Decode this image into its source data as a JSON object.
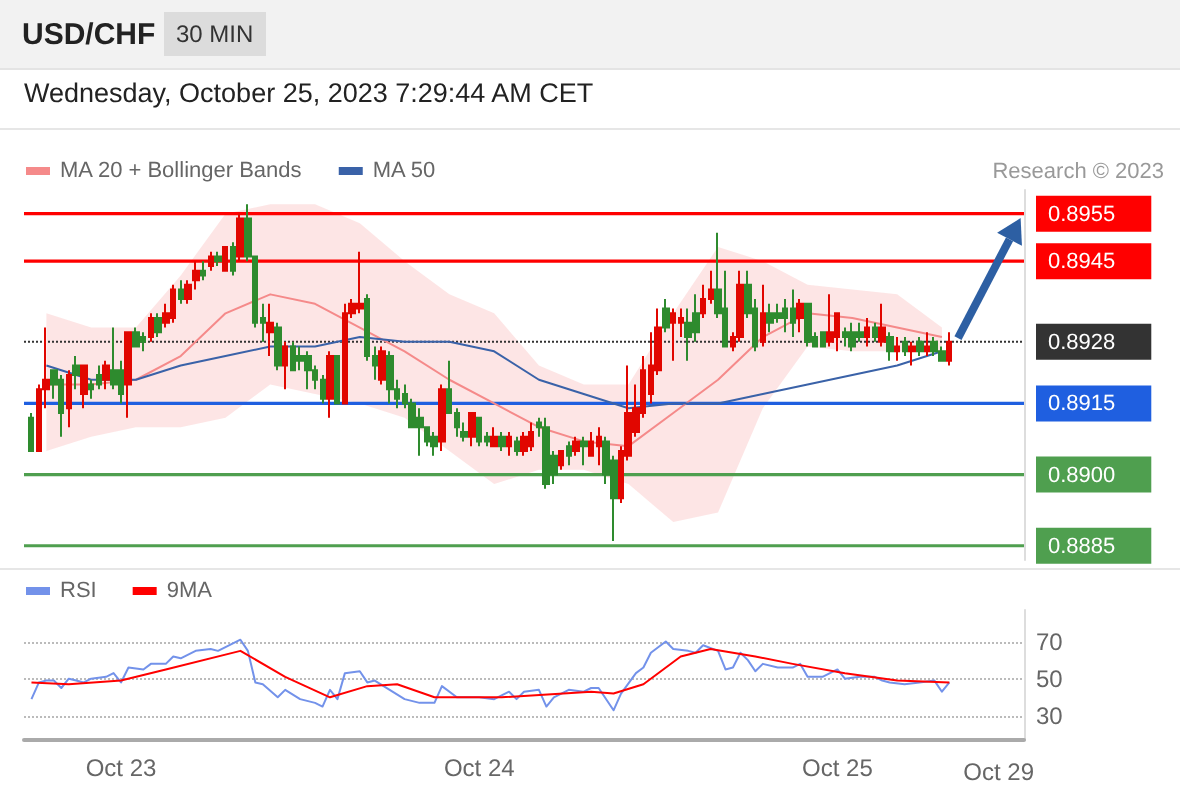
{
  "chart_data": [
    {
      "type": "candlestick",
      "title": "USD/CHF",
      "subtitle": "Wednesday, October 25, 2023 7:29:44 AM CET",
      "annotations": [
        "30 MIN",
        "Research © 2023"
      ],
      "xlim": [
        "2023-10-22T17:30",
        "2023-10-25T12:30"
      ],
      "ylim": [
        0.8882,
        0.896
      ],
      "yticks": [
        0.8885,
        {
          "value": 0.89,
          "label": "0.8900"
        },
        0.8915,
        0.8928,
        0.8945,
        0.8955
      ],
      "legend": "top left",
      "x": [
        "2023-10-22T18:00",
        "2023-10-22T18:30",
        "2023-10-22T19:00",
        "2023-10-22T19:30",
        "2023-10-22T20:00",
        "2023-10-22T20:30",
        "2023-10-22T21:00",
        "2023-10-22T21:30",
        "2023-10-22T22:00",
        "2023-10-22T22:30",
        "2023-10-22T23:00",
        "2023-10-22T23:30",
        "2023-10-23T00:00",
        "2023-10-23T00:30",
        "2023-10-23T01:00",
        "2023-10-23T01:30",
        "2023-10-23T02:00",
        "2023-10-23T02:30",
        "2023-10-23T03:00",
        "2023-10-23T03:30",
        "2023-10-23T04:00",
        "2023-10-23T04:30",
        "2023-10-23T05:00",
        "2023-10-23T05:30",
        "2023-10-23T06:00",
        "2023-10-23T06:30",
        "2023-10-23T07:00",
        "2023-10-23T07:30",
        "2023-10-23T08:00",
        "2023-10-23T08:30",
        "2023-10-23T09:00",
        "2023-10-23T09:30",
        "2023-10-23T10:00",
        "2023-10-23T10:30",
        "2023-10-23T11:00",
        "2023-10-23T11:30",
        "2023-10-23T12:00",
        "2023-10-23T12:30",
        "2023-10-23T13:00",
        "2023-10-23T13:30",
        "2023-10-23T14:00",
        "2023-10-23T14:30",
        "2023-10-23T15:00",
        "2023-10-23T15:30",
        "2023-10-23T16:00",
        "2023-10-23T16:30",
        "2023-10-23T17:00",
        "2023-10-23T17:30",
        "2023-10-23T18:00",
        "2023-10-23T18:30",
        "2023-10-23T19:00",
        "2023-10-23T19:30",
        "2023-10-23T20:00",
        "2023-10-23T20:30",
        "2023-10-23T21:00",
        "2023-10-23T21:30",
        "2023-10-23T22:00",
        "2023-10-23T22:30",
        "2023-10-23T23:00",
        "2023-10-23T23:30",
        "2023-10-24T00:00",
        "2023-10-24T00:30",
        "2023-10-24T01:00",
        "2023-10-24T01:30",
        "2023-10-24T02:00",
        "2023-10-24T02:30",
        "2023-10-24T03:00",
        "2023-10-24T03:30",
        "2023-10-24T04:00",
        "2023-10-24T04:30",
        "2023-10-24T05:00",
        "2023-10-24T05:30",
        "2023-10-24T06:00",
        "2023-10-24T06:30",
        "2023-10-24T07:00",
        "2023-10-24T07:30",
        "2023-10-24T08:00",
        "2023-10-24T08:30",
        "2023-10-24T09:00",
        "2023-10-24T09:30",
        "2023-10-24T10:00",
        "2023-10-24T10:30",
        "2023-10-24T11:00",
        "2023-10-24T11:30",
        "2023-10-24T12:00",
        "2023-10-24T12:30",
        "2023-10-24T13:00",
        "2023-10-24T13:30",
        "2023-10-24T14:00",
        "2023-10-24T14:30",
        "2023-10-24T15:00",
        "2023-10-24T15:30",
        "2023-10-24T16:00",
        "2023-10-24T16:30",
        "2023-10-24T17:00",
        "2023-10-24T17:30",
        "2023-10-24T18:00",
        "2023-10-24T18:30",
        "2023-10-24T19:00",
        "2023-10-24T19:30",
        "2023-10-24T20:00",
        "2023-10-24T20:30",
        "2023-10-24T21:00",
        "2023-10-24T21:30",
        "2023-10-24T22:00",
        "2023-10-24T22:30",
        "2023-10-24T23:00",
        "2023-10-24T23:30",
        "2023-10-25T00:00",
        "2023-10-25T00:30",
        "2023-10-25T01:00",
        "2023-10-25T01:30",
        "2023-10-25T02:00",
        "2023-10-25T02:30",
        "2023-10-25T03:00",
        "2023-10-25T03:30",
        "2023-10-25T04:00",
        "2023-10-25T04:30",
        "2023-10-25T05:00",
        "2023-10-25T05:30",
        "2023-10-25T06:00",
        "2023-10-25T06:30",
        "2023-10-25T07:00",
        "2023-10-25T07:30"
      ],
      "ohlc": [
        [
          0.8912,
          0.8913,
          0.8905,
          0.8905
        ],
        [
          0.8905,
          0.8919,
          0.8905,
          0.8918
        ],
        [
          0.8918,
          0.8931,
          0.8914,
          0.892
        ],
        [
          0.8922,
          0.8922,
          0.8916,
          0.8919
        ],
        [
          0.892,
          0.8921,
          0.8908,
          0.8913
        ],
        [
          0.8914,
          0.8922,
          0.891,
          0.8921
        ],
        [
          0.8923,
          0.8925,
          0.8918,
          0.8921
        ],
        [
          0.8917,
          0.8923,
          0.8914,
          0.8923
        ],
        [
          0.8919,
          0.892,
          0.8916,
          0.8918
        ],
        [
          0.8921,
          0.8923,
          0.8918,
          0.8919
        ],
        [
          0.892,
          0.8924,
          0.8918,
          0.8923
        ],
        [
          0.8922,
          0.8931,
          0.8918,
          0.8919
        ],
        [
          0.8922,
          0.8924,
          0.8915,
          0.8917
        ],
        [
          0.8919,
          0.893,
          0.8912,
          0.893
        ],
        [
          0.893,
          0.8931,
          0.8927,
          0.8927
        ],
        [
          0.8929,
          0.893,
          0.8926,
          0.8928
        ],
        [
          0.8929,
          0.8934,
          0.8928,
          0.8933
        ],
        [
          0.8933,
          0.8934,
          0.8929,
          0.893
        ],
        [
          0.8932,
          0.8936,
          0.8931,
          0.8934
        ],
        [
          0.8933,
          0.894,
          0.8932,
          0.8939
        ],
        [
          0.8939,
          0.8941,
          0.8936,
          0.8937
        ],
        [
          0.8937,
          0.8941,
          0.8936,
          0.894
        ],
        [
          0.8941,
          0.8945,
          0.8939,
          0.8943
        ],
        [
          0.8943,
          0.8945,
          0.8941,
          0.8942
        ],
        [
          0.8944,
          0.8947,
          0.8943,
          0.8946
        ],
        [
          0.8946,
          0.8947,
          0.8944,
          0.8945
        ],
        [
          0.8943,
          0.8948,
          0.8943,
          0.8948
        ],
        [
          0.8948,
          0.8949,
          0.8942,
          0.8943
        ],
        [
          0.8946,
          0.8955,
          0.8945,
          0.8954
        ],
        [
          0.8954,
          0.8957,
          0.8945,
          0.8946
        ],
        [
          0.8946,
          0.8946,
          0.8931,
          0.8932
        ],
        [
          0.8933,
          0.8936,
          0.8928,
          0.8932
        ],
        [
          0.893,
          0.8936,
          0.8925,
          0.8932
        ],
        [
          0.8931,
          0.8932,
          0.8922,
          0.8923
        ],
        [
          0.8923,
          0.8928,
          0.8918,
          0.8927
        ],
        [
          0.8927,
          0.8928,
          0.8922,
          0.8922
        ],
        [
          0.8925,
          0.8927,
          0.8922,
          0.8924
        ],
        [
          0.8925,
          0.8926,
          0.8918,
          0.8922
        ],
        [
          0.8922,
          0.8923,
          0.8918,
          0.892
        ],
        [
          0.892,
          0.8921,
          0.8915,
          0.8916
        ],
        [
          0.8916,
          0.8926,
          0.8912,
          0.8925
        ],
        [
          0.8925,
          0.8925,
          0.8915,
          0.8915
        ],
        [
          0.8915,
          0.8936,
          0.8915,
          0.8934
        ],
        [
          0.8934,
          0.8937,
          0.8933,
          0.8936
        ],
        [
          0.8935,
          0.8947,
          0.8934,
          0.8936
        ],
        [
          0.8937,
          0.8938,
          0.8924,
          0.8925
        ],
        [
          0.8925,
          0.8927,
          0.892,
          0.8923
        ],
        [
          0.892,
          0.8927,
          0.8919,
          0.8926
        ],
        [
          0.8925,
          0.8926,
          0.8915,
          0.8918
        ],
        [
          0.8918,
          0.892,
          0.8914,
          0.8916
        ],
        [
          0.8917,
          0.8919,
          0.8914,
          0.8915
        ],
        [
          0.8915,
          0.8916,
          0.891,
          0.891
        ],
        [
          0.8912,
          0.8914,
          0.8904,
          0.891
        ],
        [
          0.891,
          0.891,
          0.8906,
          0.8907
        ],
        [
          0.8908,
          0.8909,
          0.8904,
          0.8906
        ],
        [
          0.8907,
          0.8919,
          0.8905,
          0.8918
        ],
        [
          0.8918,
          0.8924,
          0.8913,
          0.8913
        ],
        [
          0.8913,
          0.8914,
          0.8908,
          0.891
        ],
        [
          0.8909,
          0.8911,
          0.8907,
          0.8908
        ],
        [
          0.8908,
          0.8913,
          0.8906,
          0.8913
        ],
        [
          0.8912,
          0.8912,
          0.8906,
          0.8907
        ],
        [
          0.8908,
          0.8909,
          0.8906,
          0.8907
        ],
        [
          0.8906,
          0.891,
          0.8906,
          0.8908
        ],
        [
          0.8908,
          0.8909,
          0.8905,
          0.8906
        ],
        [
          0.8906,
          0.8909,
          0.8904,
          0.8908
        ],
        [
          0.8907,
          0.8908,
          0.8904,
          0.8905
        ],
        [
          0.8905,
          0.8909,
          0.8904,
          0.8908
        ],
        [
          0.8906,
          0.8911,
          0.8905,
          0.8909
        ],
        [
          0.8911,
          0.8912,
          0.8908,
          0.891
        ],
        [
          0.891,
          0.8912,
          0.8897,
          0.8898
        ],
        [
          0.8904,
          0.8905,
          0.8898,
          0.89
        ],
        [
          0.8902,
          0.8905,
          0.8901,
          0.8905
        ],
        [
          0.8906,
          0.8907,
          0.8902,
          0.8904
        ],
        [
          0.8905,
          0.8908,
          0.8904,
          0.8907
        ],
        [
          0.8907,
          0.8908,
          0.8902,
          0.8906
        ],
        [
          0.8904,
          0.8909,
          0.8904,
          0.8907
        ],
        [
          0.8906,
          0.891,
          0.8902,
          0.8908
        ],
        [
          0.8907,
          0.8908,
          0.8898,
          0.89
        ],
        [
          0.8903,
          0.8904,
          0.8886,
          0.8895
        ],
        [
          0.8895,
          0.8906,
          0.8894,
          0.8905
        ],
        [
          0.8904,
          0.8923,
          0.8903,
          0.8913
        ],
        [
          0.8909,
          0.8919,
          0.8908,
          0.8914
        ],
        [
          0.8913,
          0.8925,
          0.8912,
          0.8922
        ],
        [
          0.8917,
          0.893,
          0.8915,
          0.8923
        ],
        [
          0.8922,
          0.8935,
          0.8921,
          0.8931
        ],
        [
          0.8935,
          0.8937,
          0.893,
          0.8931
        ],
        [
          0.8932,
          0.8935,
          0.8924,
          0.8934
        ],
        [
          0.8932,
          0.8935,
          0.8929,
          0.8933
        ],
        [
          0.8932,
          0.8935,
          0.8924,
          0.8929
        ],
        [
          0.8934,
          0.8938,
          0.8928,
          0.893
        ],
        [
          0.8934,
          0.894,
          0.8933,
          0.8937
        ],
        [
          0.8937,
          0.8943,
          0.8936,
          0.8939
        ],
        [
          0.8939,
          0.8951,
          0.8933,
          0.8934
        ],
        [
          0.8935,
          0.8943,
          0.8927,
          0.8927
        ],
        [
          0.8927,
          0.893,
          0.8926,
          0.8929
        ],
        [
          0.8929,
          0.8943,
          0.8928,
          0.894
        ],
        [
          0.894,
          0.8943,
          0.8933,
          0.8934
        ],
        [
          0.8935,
          0.8937,
          0.8926,
          0.8927
        ],
        [
          0.8928,
          0.894,
          0.8927,
          0.8934
        ],
        [
          0.8934,
          0.8936,
          0.893,
          0.8932
        ],
        [
          0.8934,
          0.8936,
          0.8932,
          0.8933
        ],
        [
          0.8935,
          0.8937,
          0.893,
          0.8933
        ],
        [
          0.8935,
          0.8939,
          0.8929,
          0.8932
        ],
        [
          0.8933,
          0.8937,
          0.893,
          0.8936
        ],
        [
          0.8936,
          0.8936,
          0.8927,
          0.8928
        ],
        [
          0.8929,
          0.893,
          0.8927,
          0.8927
        ],
        [
          0.893,
          0.893,
          0.8927,
          0.8927
        ],
        [
          0.8928,
          0.8938,
          0.8927,
          0.893
        ],
        [
          0.8929,
          0.8934,
          0.8926,
          0.8934
        ],
        [
          0.893,
          0.8931,
          0.8927,
          0.8929
        ],
        [
          0.893,
          0.8932,
          0.8926,
          0.8927
        ],
        [
          0.893,
          0.8932,
          0.8928,
          0.8929
        ],
        [
          0.8929,
          0.8933,
          0.8927,
          0.8931
        ],
        [
          0.8931,
          0.8932,
          0.8928,
          0.8929
        ],
        [
          0.8928,
          0.8936,
          0.8927,
          0.8931
        ],
        [
          0.8929,
          0.893,
          0.8924,
          0.8926
        ],
        [
          0.8926,
          0.8929,
          0.8924,
          0.8927
        ],
        [
          0.8928,
          0.8929,
          0.8925,
          0.8926
        ],
        [
          0.8926,
          0.8928,
          0.8923,
          0.8927
        ],
        [
          0.8928,
          0.8929,
          0.8925,
          0.8926
        ],
        [
          0.8926,
          0.893,
          0.8925,
          0.8927
        ],
        [
          0.8928,
          0.8929,
          0.8925,
          0.8926
        ],
        [
          0.8926,
          0.8927,
          0.8924,
          0.8924
        ],
        [
          0.8924,
          0.893,
          0.8923,
          0.8928
        ]
      ],
      "colors": [
        "#2e8b2e",
        "#e10600",
        "#e10600",
        "#2e8b2e",
        "#2e8b2e",
        "#e10600",
        "#2e8b2e",
        "#e10600",
        "#2e8b2e",
        "#2e8b2e",
        "#e10600",
        "#2e8b2e",
        "#2e8b2e",
        "#e10600",
        "#2e8b2e",
        "#2e8b2e",
        "#e10600",
        "#2e8b2e",
        "#e10600",
        "#e10600",
        "#2e8b2e",
        "#e10600",
        "#e10600",
        "#2e8b2e",
        "#e10600",
        "#2e8b2e",
        "#e10600",
        "#2e8b2e",
        "#e10600",
        "#2e8b2e",
        "#2e8b2e",
        "#2e8b2e",
        "#e10600",
        "#2e8b2e",
        "#e10600",
        "#2e8b2e",
        "#2e8b2e",
        "#2e8b2e",
        "#2e8b2e",
        "#2e8b2e",
        "#e10600",
        "#2e8b2e",
        "#e10600",
        "#e10600",
        "#e10600",
        "#2e8b2e",
        "#2e8b2e",
        "#e10600",
        "#2e8b2e",
        "#2e8b2e",
        "#2e8b2e",
        "#2e8b2e",
        "#2e8b2e",
        "#2e8b2e",
        "#2e8b2e",
        "#e10600",
        "#2e8b2e",
        "#2e8b2e",
        "#2e8b2e",
        "#e10600",
        "#2e8b2e",
        "#2e8b2e",
        "#e10600",
        "#2e8b2e",
        "#e10600",
        "#2e8b2e",
        "#e10600",
        "#e10600",
        "#2e8b2e",
        "#2e8b2e",
        "#2e8b2e",
        "#e10600",
        "#2e8b2e",
        "#e10600",
        "#2e8b2e",
        "#e10600",
        "#e10600",
        "#2e8b2e",
        "#2e8b2e",
        "#e10600",
        "#e10600",
        "#e10600",
        "#e10600",
        "#e10600",
        "#e10600",
        "#2e8b2e",
        "#e10600",
        "#e10600",
        "#2e8b2e",
        "#2e8b2e",
        "#e10600",
        "#e10600",
        "#2e8b2e",
        "#2e8b2e",
        "#e10600",
        "#e10600",
        "#2e8b2e",
        "#2e8b2e",
        "#e10600",
        "#2e8b2e",
        "#2e8b2e",
        "#2e8b2e",
        "#2e8b2e",
        "#e10600",
        "#2e8b2e",
        "#2e8b2e",
        "#2e8b2e",
        "#e10600",
        "#e10600",
        "#2e8b2e",
        "#2e8b2e",
        "#2e8b2e",
        "#e10600",
        "#2e8b2e",
        "#e10600",
        "#2e8b2e",
        "#e10600",
        "#2e8b2e",
        "#e10600",
        "#2e8b2e",
        "#e10600",
        "#2e8b2e",
        "#2e8b2e",
        "#e10600"
      ],
      "series": [
        {
          "type": "line",
          "name": "MA 20 + Bollinger Bands",
          "color": "#f58a8a",
          "x": [
            "2023-10-22T19:00",
            "2023-10-22T22:00",
            "2023-10-23T01:00",
            "2023-10-23T04:00",
            "2023-10-23T07:00",
            "2023-10-23T10:00",
            "2023-10-23T13:00",
            "2023-10-23T16:00",
            "2023-10-23T19:00",
            "2023-10-23T22:00",
            "2023-10-24T01:00",
            "2023-10-24T04:00",
            "2023-10-24T07:00",
            "2023-10-24T10:00",
            "2023-10-24T13:00",
            "2023-10-24T16:00",
            "2023-10-24T19:00",
            "2023-10-24T22:00",
            "2023-10-25T01:00",
            "2023-10-25T04:00",
            "2023-10-25T07:00"
          ],
          "values": [
            0.8919,
            0.8919,
            0.892,
            0.8925,
            0.8934,
            0.8938,
            0.8936,
            0.8931,
            0.8926,
            0.892,
            0.8915,
            0.891,
            0.8907,
            0.8906,
            0.8913,
            0.892,
            0.8929,
            0.8934,
            0.8933,
            0.8931,
            0.8929
          ],
          "upper": [
            0.8934,
            0.8931,
            0.8931,
            0.8942,
            0.8955,
            0.8957,
            0.8957,
            0.8953,
            0.8945,
            0.8938,
            0.8934,
            0.8923,
            0.8919,
            0.8919,
            0.8934,
            0.8948,
            0.8945,
            0.894,
            0.8939,
            0.8938,
            0.8931
          ],
          "lower": [
            0.8905,
            0.8908,
            0.891,
            0.891,
            0.8912,
            0.8919,
            0.8917,
            0.8915,
            0.8912,
            0.8905,
            0.8898,
            0.8901,
            0.8901,
            0.8898,
            0.889,
            0.8892,
            0.8914,
            0.8927,
            0.8926,
            0.8926,
            0.8926
          ]
        },
        {
          "type": "line",
          "name": "MA 50",
          "color": "#3a62a8",
          "x": [
            "2023-10-22T19:00",
            "2023-10-22T22:00",
            "2023-10-23T01:00",
            "2023-10-23T04:00",
            "2023-10-23T07:00",
            "2023-10-23T10:00",
            "2023-10-23T13:00",
            "2023-10-23T16:00",
            "2023-10-23T19:00",
            "2023-10-23T22:00",
            "2023-10-24T01:00",
            "2023-10-24T04:00",
            "2023-10-24T07:00",
            "2023-10-24T10:00",
            "2023-10-24T13:00",
            "2023-10-24T16:00",
            "2023-10-24T19:00",
            "2023-10-24T22:00",
            "2023-10-25T01:00",
            "2023-10-25T04:00",
            "2023-10-25T07:00"
          ],
          "values": [
            0.8923,
            0.892,
            0.892,
            0.8923,
            0.8925,
            0.8927,
            0.8927,
            0.8929,
            0.8928,
            0.8928,
            0.8926,
            0.892,
            0.8917,
            0.8914,
            0.8915,
            0.8915,
            0.8917,
            0.8919,
            0.8921,
            0.8923,
            0.8926
          ]
        }
      ],
      "ref_lines": [
        {
          "axis": "y",
          "value": 0.8955,
          "color": "#ff0000"
        },
        {
          "axis": "y",
          "value": 0.8945,
          "color": "#ff0000"
        },
        {
          "axis": "y",
          "value": 0.8928,
          "color": "#333333",
          "line_style": "dotted"
        },
        {
          "axis": "y",
          "value": 0.8915,
          "color": "#1f5fe0"
        },
        {
          "axis": "y",
          "value": 0.89,
          "color": "#4f9f4f"
        },
        {
          "axis": "y",
          "value": 0.8885,
          "color": "#4f9f4f"
        }
      ]
    },
    {
      "type": "line",
      "legend": "top left",
      "grid": "y",
      "marker": "none",
      "xlim": [
        "2023-10-22T17:30",
        "2023-10-25T12:30"
      ],
      "xticks": [
        {
          "value": "2023-10-23T00:00",
          "label": "Oct 23"
        },
        {
          "value": "2023-10-24T00:00",
          "label": "Oct 24"
        },
        {
          "value": "2023-10-25T00:00",
          "label": "Oct 25"
        }
      ],
      "annotations": [
        "Oct 29"
      ],
      "ylim": [
        17,
        87
      ],
      "yticks": [
        30,
        50,
        70
      ],
      "series": [
        {
          "name": "RSI",
          "color": "#7392ea",
          "x": [
            "2023-10-22T18:00",
            "2023-10-22T18:30",
            "2023-10-22T19:00",
            "2023-10-22T19:30",
            "2023-10-22T20:00",
            "2023-10-22T20:30",
            "2023-10-22T21:00",
            "2023-10-22T21:30",
            "2023-10-22T22:00",
            "2023-10-22T23:00",
            "2023-10-22T23:30",
            "2023-10-23T00:00",
            "2023-10-23T00:30",
            "2023-10-23T01:30",
            "2023-10-23T02:00",
            "2023-10-23T03:00",
            "2023-10-23T03:30",
            "2023-10-23T04:00",
            "2023-10-23T05:00",
            "2023-10-23T06:00",
            "2023-10-23T06:30",
            "2023-10-23T07:00",
            "2023-10-23T08:00",
            "2023-10-23T08:30",
            "2023-10-23T09:00",
            "2023-10-23T09:30",
            "2023-10-23T10:30",
            "2023-10-23T11:00",
            "2023-10-23T12:00",
            "2023-10-23T13:00",
            "2023-10-23T13:30",
            "2023-10-23T14:00",
            "2023-10-23T14:30",
            "2023-10-23T15:00",
            "2023-10-23T16:00",
            "2023-10-23T16:30",
            "2023-10-23T17:00",
            "2023-10-23T18:00",
            "2023-10-23T19:00",
            "2023-10-23T20:00",
            "2023-10-23T21:00",
            "2023-10-23T21:30",
            "2023-10-23T22:30",
            "2023-10-23T23:00",
            "2023-10-24T00:00",
            "2023-10-24T01:00",
            "2023-10-24T02:00",
            "2023-10-24T02:30",
            "2023-10-24T03:00",
            "2023-10-24T04:00",
            "2023-10-24T04:30",
            "2023-10-24T05:00",
            "2023-10-24T06:00",
            "2023-10-24T07:00",
            "2023-10-24T07:30",
            "2023-10-24T08:00",
            "2023-10-24T09:00",
            "2023-10-24T09:30",
            "2023-10-24T10:30",
            "2023-10-24T11:00",
            "2023-10-24T11:30",
            "2023-10-24T12:30",
            "2023-10-24T13:00",
            "2023-10-24T14:00",
            "2023-10-24T14:30",
            "2023-10-24T15:00",
            "2023-10-24T16:00",
            "2023-10-24T16:30",
            "2023-10-24T17:00",
            "2023-10-24T17:30",
            "2023-10-24T18:00",
            "2023-10-24T18:30",
            "2023-10-24T19:00",
            "2023-10-24T20:00",
            "2023-10-24T21:00",
            "2023-10-24T21:30",
            "2023-10-24T22:00",
            "2023-10-24T23:00",
            "2023-10-25T00:00",
            "2023-10-25T00:30",
            "2023-10-25T01:30",
            "2023-10-25T02:30",
            "2023-10-25T03:00",
            "2023-10-25T03:30",
            "2023-10-25T04:30",
            "2023-10-25T05:30",
            "2023-10-25T06:30",
            "2023-10-25T07:00",
            "2023-10-25T07:30"
          ],
          "values": [
            39,
            48,
            49,
            49,
            45,
            50,
            49,
            48,
            50,
            51,
            53,
            48,
            56,
            55,
            58,
            58,
            62,
            61,
            65,
            66,
            65,
            67,
            71,
            65,
            48,
            47,
            40,
            44,
            39,
            37,
            35,
            44,
            39,
            53,
            54,
            48,
            49,
            44,
            39,
            37,
            37,
            46,
            40,
            40,
            40,
            39,
            43,
            39,
            43,
            44,
            35,
            40,
            44,
            43,
            45,
            45,
            33,
            42,
            53,
            56,
            64,
            70,
            66,
            65,
            64,
            68,
            65,
            55,
            56,
            64,
            60,
            54,
            58,
            56,
            56,
            58,
            51,
            51,
            55,
            50,
            51,
            51,
            49,
            48,
            47,
            48,
            49,
            43,
            48
          ]
        },
        {
          "name": "9MA",
          "color": "#ff0000",
          "x": [
            "2023-10-22T18:00",
            "2023-10-22T20:30",
            "2023-10-23T00:00",
            "2023-10-23T03:00",
            "2023-10-23T08:00",
            "2023-10-23T11:00",
            "2023-10-23T14:00",
            "2023-10-23T16:30",
            "2023-10-23T18:30",
            "2023-10-23T21:00",
            "2023-10-24T01:30",
            "2023-10-24T07:30",
            "2023-10-24T09:00",
            "2023-10-24T11:00",
            "2023-10-24T13:30",
            "2023-10-24T15:30",
            "2023-10-24T18:30",
            "2023-10-24T21:00",
            "2023-10-25T00:30",
            "2023-10-25T04:00",
            "2023-10-25T07:30"
          ],
          "values": [
            48,
            47,
            49,
            55,
            65,
            51,
            40,
            46,
            47,
            40,
            40,
            43,
            42,
            47,
            62,
            66,
            62,
            58,
            53,
            49,
            48
          ]
        }
      ]
    }
  ]
}
